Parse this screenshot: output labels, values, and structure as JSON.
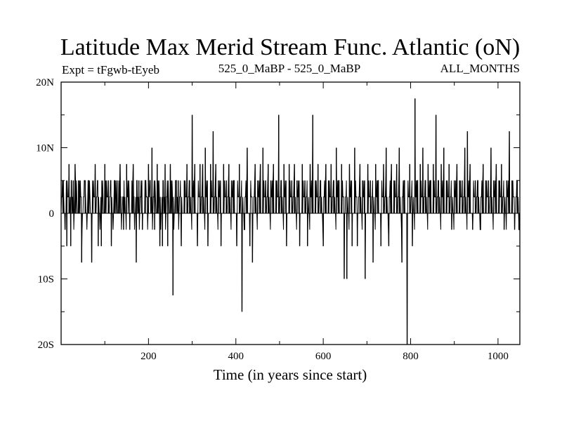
{
  "chart_data": {
    "type": "line",
    "title": "Latitude Max Merid Stream Func. Atlantic (oN)",
    "subtitle_left": "Expt = tFgwb-tEyeb",
    "subtitle_center": "525_0_MaBP - 525_0_MaBP",
    "subtitle_right": "ALL_MONTHS",
    "xlabel": "Time (in years since start)",
    "ylabel": "",
    "xlim": [
      0,
      1050
    ],
    "ylim": [
      -20,
      20
    ],
    "x_ticks": [
      {
        "value": 200,
        "label": "200"
      },
      {
        "value": 400,
        "label": "400"
      },
      {
        "value": 600,
        "label": "600"
      },
      {
        "value": 800,
        "label": "800"
      },
      {
        "value": 1000,
        "label": "1000"
      }
    ],
    "y_ticks": [
      {
        "value": 20,
        "label": "20N"
      },
      {
        "value": 10,
        "label": "10N"
      },
      {
        "value": 0,
        "label": "0"
      },
      {
        "value": -10,
        "label": "10S"
      },
      {
        "value": -20,
        "label": "20S"
      }
    ],
    "series": [
      {
        "name": "Latitude of max meridional stream function",
        "step": 2.5,
        "base_values": [
          0,
          2.5,
          5,
          0,
          2.5,
          0,
          0,
          2.5,
          5,
          0,
          2.5,
          0,
          -2.5,
          0,
          2.5,
          0,
          5,
          2.5,
          0,
          0
        ],
        "spikes": [
          {
            "x": 5,
            "y": 5
          },
          {
            "x": 9,
            "y": -2.5
          },
          {
            "x": 13,
            "y": -5
          },
          {
            "x": 18,
            "y": 7.5
          },
          {
            "x": 22,
            "y": -5
          },
          {
            "x": 28,
            "y": 5
          },
          {
            "x": 32,
            "y": 7.5
          },
          {
            "x": 40,
            "y": 5
          },
          {
            "x": 47,
            "y": -7.5
          },
          {
            "x": 55,
            "y": 5
          },
          {
            "x": 62,
            "y": 5
          },
          {
            "x": 70,
            "y": -7.5
          },
          {
            "x": 78,
            "y": 7.5
          },
          {
            "x": 85,
            "y": -5
          },
          {
            "x": 92,
            "y": -5
          },
          {
            "x": 100,
            "y": 7.5
          },
          {
            "x": 108,
            "y": 5
          },
          {
            "x": 115,
            "y": -5
          },
          {
            "x": 122,
            "y": 5
          },
          {
            "x": 128,
            "y": 5
          },
          {
            "x": 135,
            "y": 7.5
          },
          {
            "x": 143,
            "y": -2.5
          },
          {
            "x": 150,
            "y": 7.5
          },
          {
            "x": 157,
            "y": -2.5
          },
          {
            "x": 165,
            "y": 7.5
          },
          {
            "x": 172,
            "y": -7.5
          },
          {
            "x": 178,
            "y": 5
          },
          {
            "x": 186,
            "y": -2.5
          },
          {
            "x": 193,
            "y": 5
          },
          {
            "x": 200,
            "y": 7.5
          },
          {
            "x": 208,
            "y": 10
          },
          {
            "x": 214,
            "y": -2.5
          },
          {
            "x": 220,
            "y": 7.5
          },
          {
            "x": 226,
            "y": -5
          },
          {
            "x": 232,
            "y": -5
          },
          {
            "x": 238,
            "y": 7.5
          },
          {
            "x": 244,
            "y": -5
          },
          {
            "x": 250,
            "y": 7.5
          },
          {
            "x": 256,
            "y": -12.5
          },
          {
            "x": 262,
            "y": 5
          },
          {
            "x": 268,
            "y": 5
          },
          {
            "x": 275,
            "y": -5
          },
          {
            "x": 282,
            "y": 5
          },
          {
            "x": 288,
            "y": 7.5
          },
          {
            "x": 294,
            "y": 5
          },
          {
            "x": 300,
            "y": 15
          },
          {
            "x": 306,
            "y": 7.5
          },
          {
            "x": 312,
            "y": -5
          },
          {
            "x": 318,
            "y": 7.5
          },
          {
            "x": 324,
            "y": 7.5
          },
          {
            "x": 330,
            "y": 10
          },
          {
            "x": 336,
            "y": -5
          },
          {
            "x": 342,
            "y": 7.5
          },
          {
            "x": 348,
            "y": 12.5
          },
          {
            "x": 354,
            "y": 7.5
          },
          {
            "x": 360,
            "y": 5
          },
          {
            "x": 366,
            "y": -5
          },
          {
            "x": 372,
            "y": 7.5
          },
          {
            "x": 378,
            "y": 5
          },
          {
            "x": 384,
            "y": 7.5
          },
          {
            "x": 390,
            "y": 5
          },
          {
            "x": 396,
            "y": 5
          },
          {
            "x": 402,
            "y": -5
          },
          {
            "x": 408,
            "y": 7.5
          },
          {
            "x": 414,
            "y": -15
          },
          {
            "x": 420,
            "y": -2.5
          },
          {
            "x": 426,
            "y": 10
          },
          {
            "x": 432,
            "y": -5
          },
          {
            "x": 438,
            "y": -7.5
          },
          {
            "x": 444,
            "y": 7.5
          },
          {
            "x": 450,
            "y": 5
          },
          {
            "x": 456,
            "y": 7.5
          },
          {
            "x": 462,
            "y": 10
          },
          {
            "x": 468,
            "y": 5
          },
          {
            "x": 474,
            "y": 7.5
          },
          {
            "x": 480,
            "y": 5
          },
          {
            "x": 486,
            "y": 7.5
          },
          {
            "x": 492,
            "y": 5
          },
          {
            "x": 498,
            "y": 15
          },
          {
            "x": 504,
            "y": 5
          },
          {
            "x": 510,
            "y": 7.5
          },
          {
            "x": 516,
            "y": -5
          },
          {
            "x": 522,
            "y": 7.5
          },
          {
            "x": 528,
            "y": 5
          },
          {
            "x": 534,
            "y": 7.5
          },
          {
            "x": 540,
            "y": 5
          },
          {
            "x": 546,
            "y": -5
          },
          {
            "x": 552,
            "y": 7.5
          },
          {
            "x": 558,
            "y": 5
          },
          {
            "x": 564,
            "y": -5
          },
          {
            "x": 570,
            "y": 7.5
          },
          {
            "x": 576,
            "y": 15
          },
          {
            "x": 582,
            "y": 5
          },
          {
            "x": 588,
            "y": 7.5
          },
          {
            "x": 594,
            "y": 5
          },
          {
            "x": 600,
            "y": -5
          },
          {
            "x": 606,
            "y": 7.5
          },
          {
            "x": 612,
            "y": 5
          },
          {
            "x": 618,
            "y": 7.5
          },
          {
            "x": 624,
            "y": 5
          },
          {
            "x": 630,
            "y": 10
          },
          {
            "x": 636,
            "y": 5
          },
          {
            "x": 642,
            "y": 7.5
          },
          {
            "x": 648,
            "y": -10
          },
          {
            "x": 654,
            "y": -10
          },
          {
            "x": 660,
            "y": 7.5
          },
          {
            "x": 666,
            "y": -5
          },
          {
            "x": 672,
            "y": 10
          },
          {
            "x": 678,
            "y": -5
          },
          {
            "x": 684,
            "y": 7.5
          },
          {
            "x": 690,
            "y": 5
          },
          {
            "x": 696,
            "y": -10
          },
          {
            "x": 702,
            "y": 7.5
          },
          {
            "x": 708,
            "y": 5
          },
          {
            "x": 714,
            "y": -7.5
          },
          {
            "x": 720,
            "y": 7.5
          },
          {
            "x": 726,
            "y": 5
          },
          {
            "x": 732,
            "y": -5
          },
          {
            "x": 738,
            "y": 7.5
          },
          {
            "x": 744,
            "y": 10
          },
          {
            "x": 750,
            "y": -5
          },
          {
            "x": 756,
            "y": 7.5
          },
          {
            "x": 762,
            "y": 5
          },
          {
            "x": 768,
            "y": 7.5
          },
          {
            "x": 774,
            "y": 10
          },
          {
            "x": 780,
            "y": -7.5
          },
          {
            "x": 786,
            "y": 5
          },
          {
            "x": 792,
            "y": -20
          },
          {
            "x": 798,
            "y": 7.5
          },
          {
            "x": 804,
            "y": -5
          },
          {
            "x": 810,
            "y": 17.5
          },
          {
            "x": 816,
            "y": 5
          },
          {
            "x": 822,
            "y": 7.5
          },
          {
            "x": 828,
            "y": 10
          },
          {
            "x": 834,
            "y": 5
          },
          {
            "x": 840,
            "y": 7.5
          },
          {
            "x": 846,
            "y": 5
          },
          {
            "x": 852,
            "y": 7.5
          },
          {
            "x": 858,
            "y": 15
          },
          {
            "x": 864,
            "y": 5
          },
          {
            "x": 870,
            "y": 7.5
          },
          {
            "x": 876,
            "y": 10
          },
          {
            "x": 882,
            "y": 5
          },
          {
            "x": 888,
            "y": 7.5
          },
          {
            "x": 894,
            "y": -2.5
          },
          {
            "x": 900,
            "y": 5
          },
          {
            "x": 906,
            "y": 7.5
          },
          {
            "x": 912,
            "y": 5
          },
          {
            "x": 918,
            "y": 5
          },
          {
            "x": 924,
            "y": 10
          },
          {
            "x": 930,
            "y": 12.5
          },
          {
            "x": 936,
            "y": 7.5
          },
          {
            "x": 942,
            "y": -2.5
          },
          {
            "x": 948,
            "y": 5
          },
          {
            "x": 954,
            "y": 5
          },
          {
            "x": 960,
            "y": -2.5
          },
          {
            "x": 966,
            "y": 7.5
          },
          {
            "x": 972,
            "y": 5
          },
          {
            "x": 978,
            "y": 5
          },
          {
            "x": 984,
            "y": 10
          },
          {
            "x": 990,
            "y": 5
          },
          {
            "x": 996,
            "y": 7.5
          },
          {
            "x": 1002,
            "y": 5
          },
          {
            "x": 1008,
            "y": 7.5
          },
          {
            "x": 1014,
            "y": -2.5
          },
          {
            "x": 1020,
            "y": 5
          },
          {
            "x": 1026,
            "y": 12.5
          },
          {
            "x": 1032,
            "y": 5
          },
          {
            "x": 1038,
            "y": -2.5
          },
          {
            "x": 1044,
            "y": 5
          },
          {
            "x": 1048,
            "y": -2.5
          }
        ]
      }
    ],
    "grid": false,
    "legend": "none"
  }
}
